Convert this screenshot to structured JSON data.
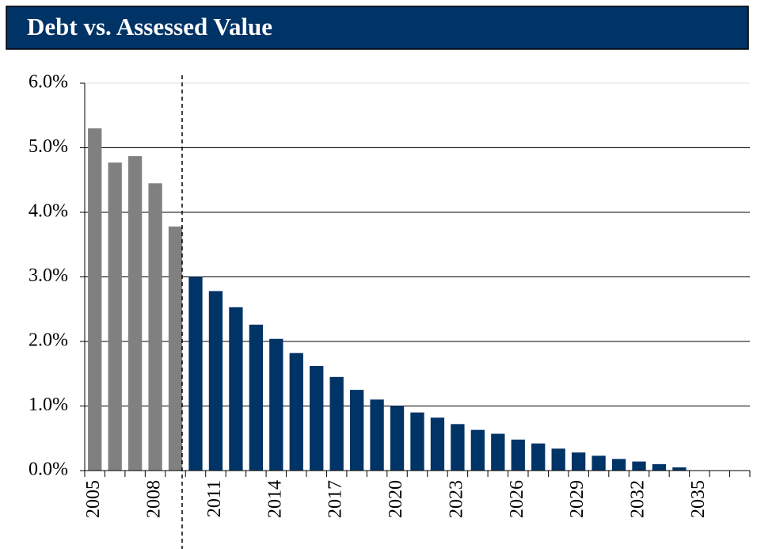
{
  "chart_data": {
    "type": "bar",
    "title": "Debt vs. Assessed Value",
    "categories": [
      "2005",
      null,
      null,
      "2008",
      null,
      null,
      "2011",
      null,
      null,
      "2014",
      null,
      null,
      "2017",
      null,
      null,
      "2020",
      null,
      null,
      "2023",
      null,
      null,
      "2026",
      null,
      null,
      "2029",
      null,
      null,
      "2032",
      null,
      null,
      "2035",
      null,
      null
    ],
    "values": [
      5.3,
      4.77,
      4.87,
      4.45,
      3.78,
      3.0,
      2.78,
      2.53,
      2.26,
      2.04,
      1.82,
      1.62,
      1.45,
      1.25,
      1.1,
      1.0,
      0.9,
      0.82,
      0.72,
      0.63,
      0.57,
      0.48,
      0.42,
      0.34,
      0.28,
      0.23,
      0.18,
      0.14,
      0.1,
      0.05,
      0,
      0,
      0
    ],
    "colors": [
      "#808080",
      "#808080",
      "#808080",
      "#808080",
      "#808080",
      "#003366",
      "#003366",
      "#003366",
      "#003366",
      "#003366",
      "#003366",
      "#003366",
      "#003366",
      "#003366",
      "#003366",
      "#003366",
      "#003366",
      "#003366",
      "#003366",
      "#003366",
      "#003366",
      "#003366",
      "#003366",
      "#003366",
      "#003366",
      "#003366",
      "#003366",
      "#003366",
      "#003366",
      "#003366",
      "#003366",
      "#003366",
      "#003366"
    ],
    "ylim": [
      0,
      6
    ],
    "yticks": [
      {
        "value": 0,
        "label": "0.0%"
      },
      {
        "value": 1,
        "label": "1.0%"
      },
      {
        "value": 2,
        "label": "2.0%"
      },
      {
        "value": 3,
        "label": "3.0%"
      },
      {
        "value": 4,
        "label": "4.0%"
      },
      {
        "value": 5,
        "label": "5.0%"
      },
      {
        "value": 6,
        "label": "6.0%"
      }
    ],
    "grid": true
  }
}
